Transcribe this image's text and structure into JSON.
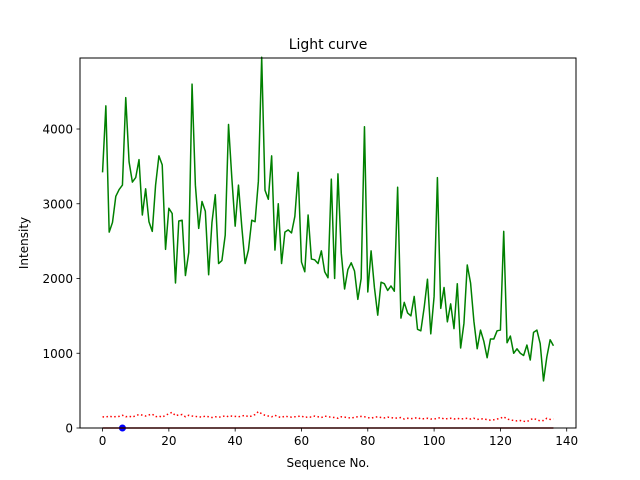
{
  "chart_data": {
    "type": "line",
    "title": "Light curve",
    "xlabel": "Sequence No.",
    "ylabel": "Intensity",
    "xlim": [
      -6.8,
      142.8
    ],
    "ylim": [
      0,
      4950
    ],
    "xticks": [
      0,
      20,
      40,
      60,
      80,
      100,
      120,
      140
    ],
    "yticks": [
      0,
      1000,
      2000,
      3000,
      4000
    ],
    "grid": false,
    "series": [
      {
        "color": "#008000",
        "style": "solid",
        "x": [
          0,
          1,
          2,
          3,
          4,
          5,
          6,
          7,
          8,
          9,
          10,
          11,
          12,
          13,
          14,
          15,
          16,
          17,
          18,
          19,
          20,
          21,
          22,
          23,
          24,
          25,
          26,
          27,
          28,
          29,
          30,
          31,
          32,
          33,
          34,
          35,
          36,
          37,
          38,
          39,
          40,
          41,
          42,
          43,
          44,
          45,
          46,
          47,
          48,
          49,
          50,
          51,
          52,
          53,
          54,
          55,
          56,
          57,
          58,
          59,
          60,
          61,
          62,
          63,
          64,
          65,
          66,
          67,
          68,
          69,
          70,
          71,
          72,
          73,
          74,
          75,
          76,
          77,
          78,
          79,
          80,
          81,
          82,
          83,
          84,
          85,
          86,
          87,
          88,
          89,
          90,
          91,
          92,
          93,
          94,
          95,
          96,
          97,
          98,
          99,
          100,
          101,
          102,
          103,
          104,
          105,
          106,
          107,
          108,
          109,
          110,
          111,
          112,
          113,
          114,
          115,
          116,
          117,
          118,
          119,
          120,
          121,
          122,
          123,
          124,
          125,
          126,
          127,
          128,
          129,
          130,
          131,
          132,
          133,
          134,
          135,
          136
        ],
        "values": [
          3420,
          4310,
          2620,
          2750,
          3100,
          3190,
          3250,
          4420,
          3560,
          3290,
          3350,
          3590,
          2850,
          3200,
          2760,
          2630,
          3250,
          3640,
          3520,
          2390,
          2940,
          2870,
          1940,
          2770,
          2780,
          2040,
          2350,
          4600,
          3250,
          2670,
          3030,
          2900,
          2050,
          2750,
          3120,
          2200,
          2240,
          2580,
          4060,
          3340,
          2700,
          3250,
          2690,
          2200,
          2380,
          2780,
          2760,
          3300,
          4960,
          3180,
          3060,
          3640,
          2380,
          3000,
          2200,
          2620,
          2650,
          2610,
          2830,
          3420,
          2220,
          2090,
          2850,
          2260,
          2250,
          2200,
          2370,
          2090,
          2010,
          3330,
          2000,
          3400,
          2340,
          1860,
          2120,
          2210,
          2100,
          1720,
          2000,
          4030,
          1820,
          2370,
          1880,
          1510,
          1950,
          1930,
          1840,
          1900,
          1830,
          3220,
          1470,
          1680,
          1540,
          1500,
          1760,
          1320,
          1300,
          1610,
          1990,
          1260,
          1760,
          3350,
          1600,
          1880,
          1420,
          1660,
          1330,
          1930,
          1070,
          1400,
          2180,
          1940,
          1430,
          1060,
          1310,
          1160,
          940,
          1190,
          1190,
          1300,
          1310,
          2630,
          1140,
          1230,
          1000,
          1060,
          1000,
          970,
          1110,
          910,
          1280,
          1310,
          1130,
          630,
          950,
          1180,
          1100
        ]
      },
      {
        "color": "#ff0000",
        "style": "dotted",
        "x": [
          0,
          1,
          2,
          3,
          4,
          5,
          6,
          7,
          8,
          9,
          10,
          11,
          12,
          13,
          14,
          15,
          16,
          17,
          18,
          19,
          20,
          21,
          22,
          23,
          24,
          25,
          26,
          27,
          28,
          29,
          30,
          31,
          32,
          33,
          34,
          35,
          36,
          37,
          38,
          39,
          40,
          41,
          42,
          43,
          44,
          45,
          46,
          47,
          48,
          49,
          50,
          51,
          52,
          53,
          54,
          55,
          56,
          57,
          58,
          59,
          60,
          61,
          62,
          63,
          64,
          65,
          66,
          67,
          68,
          69,
          70,
          71,
          72,
          73,
          74,
          75,
          76,
          77,
          78,
          79,
          80,
          81,
          82,
          83,
          84,
          85,
          86,
          87,
          88,
          89,
          90,
          91,
          92,
          93,
          94,
          95,
          96,
          97,
          98,
          99,
          100,
          101,
          102,
          103,
          104,
          105,
          106,
          107,
          108,
          109,
          110,
          111,
          112,
          113,
          114,
          115,
          116,
          117,
          118,
          119,
          120,
          121,
          122,
          123,
          124,
          125,
          126,
          127,
          128,
          129,
          130,
          131,
          132,
          133,
          134,
          135,
          136
        ],
        "values": [
          150,
          145,
          160,
          148,
          152,
          155,
          170,
          150,
          158,
          145,
          165,
          180,
          172,
          160,
          175,
          185,
          150,
          160,
          145,
          170,
          190,
          210,
          165,
          175,
          180,
          150,
          170,
          160,
          155,
          150,
          145,
          160,
          150,
          140,
          150,
          145,
          150,
          165,
          150,
          160,
          155,
          150,
          160,
          170,
          150,
          160,
          180,
          220,
          190,
          170,
          160,
          150,
          170,
          150,
          140,
          160,
          150,
          145,
          150,
          155,
          160,
          140,
          150,
          145,
          160,
          150,
          140,
          160,
          150,
          145,
          140,
          130,
          150,
          145,
          140,
          130,
          145,
          150,
          155,
          150,
          140,
          130,
          145,
          150,
          140,
          135,
          145,
          140,
          130,
          135,
          140,
          120,
          130,
          125,
          130,
          140,
          120,
          125,
          130,
          120,
          120,
          130,
          140,
          120,
          125,
          130,
          120,
          130,
          120,
          125,
          130,
          120,
          130,
          115,
          120,
          125,
          110,
          105,
          110,
          120,
          130,
          150,
          120,
          110,
          100,
          95,
          100,
          90,
          85,
          110,
          130,
          110,
          95,
          100,
          130,
          115,
          120
        ]
      },
      {
        "color": "#0000ff",
        "style": "marker",
        "x": [
          6
        ],
        "values": [
          0
        ]
      },
      {
        "color": "#8b0000",
        "style": "solid",
        "x": [
          0,
          136
        ],
        "values": [
          0,
          0
        ]
      }
    ]
  }
}
